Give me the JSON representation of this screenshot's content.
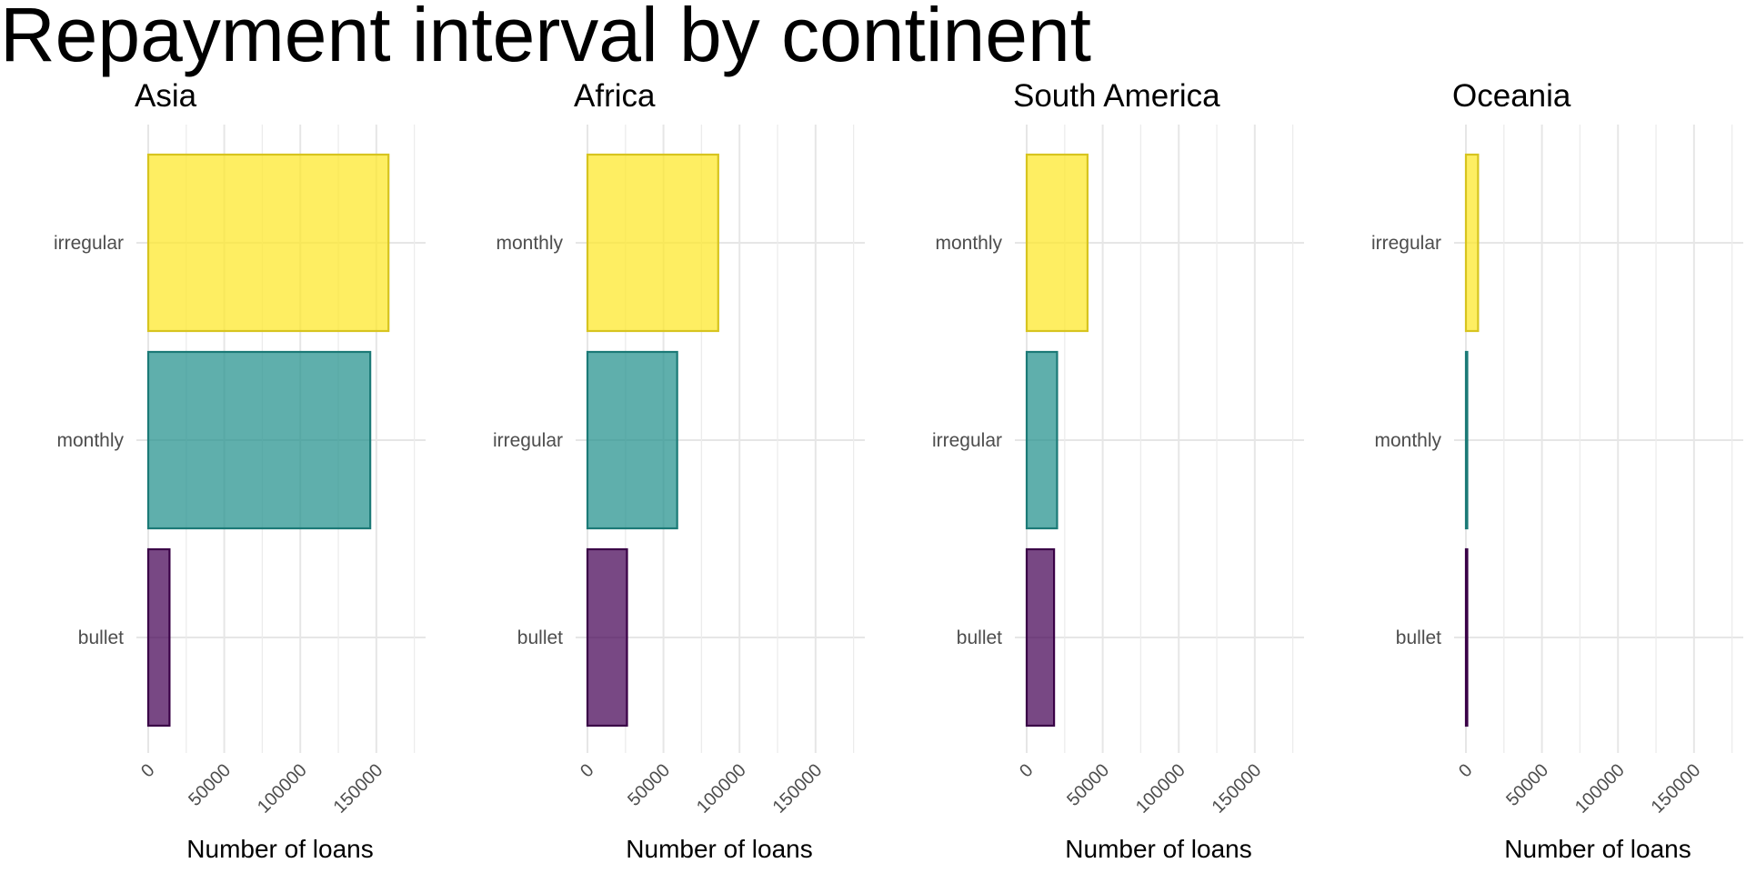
{
  "chart_data": {
    "type": "bar",
    "orientation": "horizontal",
    "title": "Repayment interval by continent",
    "xlabel": "Number of loans",
    "ylabel": "",
    "xlim": [
      0,
      180000
    ],
    "xticks": [
      0,
      50000,
      100000,
      150000
    ],
    "xtick_labels": [
      "0",
      "50000",
      "100000",
      "150000"
    ],
    "grid": true,
    "legend": "none",
    "colors": {
      "irregular_top": "#FDE725",
      "middle": "#21908C",
      "bottom": "#440154"
    },
    "facets": [
      {
        "name": "Asia",
        "categories": [
          "irregular",
          "monthly",
          "bullet"
        ],
        "values": [
          158000,
          146000,
          14000
        ],
        "colors": [
          "#FDE725",
          "#21908C",
          "#440154"
        ]
      },
      {
        "name": "Africa",
        "categories": [
          "monthly",
          "irregular",
          "bullet"
        ],
        "values": [
          86000,
          59000,
          26000
        ],
        "colors": [
          "#FDE725",
          "#21908C",
          "#440154"
        ]
      },
      {
        "name": "South America",
        "categories": [
          "monthly",
          "irregular",
          "bullet"
        ],
        "values": [
          40000,
          20000,
          18000
        ],
        "colors": [
          "#FDE725",
          "#21908C",
          "#440154"
        ]
      },
      {
        "name": "Oceania",
        "categories": [
          "irregular",
          "monthly",
          "bullet"
        ],
        "values": [
          8000,
          500,
          500
        ],
        "colors": [
          "#FDE725",
          "#21908C",
          "#440154"
        ]
      }
    ]
  }
}
